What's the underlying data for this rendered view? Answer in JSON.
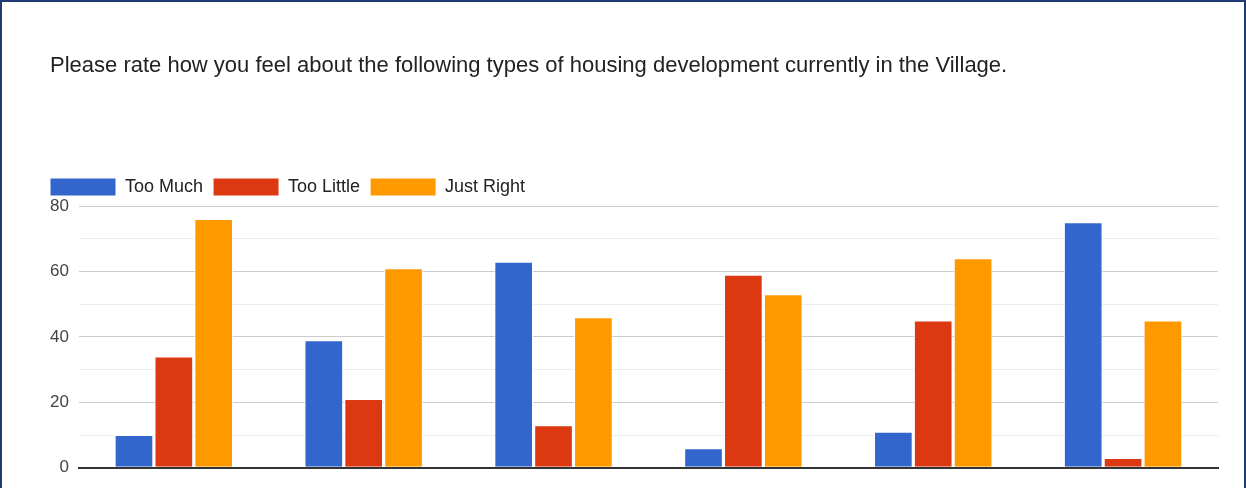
{
  "chart_data": {
    "type": "bar",
    "title": "Please rate how you feel about the following types of housing development currently in the Village.",
    "categories": [
      null,
      null,
      null,
      null,
      null,
      null
    ],
    "series": [
      {
        "name": "Too Much",
        "color": "#3366cc",
        "values": [
          10,
          39,
          63,
          6,
          11,
          75
        ]
      },
      {
        "name": "Too Little",
        "color": "#dc3912",
        "values": [
          34,
          21,
          13,
          59,
          45,
          3
        ]
      },
      {
        "name": "Just Right",
        "color": "#ff9900",
        "values": [
          76,
          61,
          46,
          53,
          64,
          45
        ]
      }
    ],
    "ylim": [
      0,
      80
    ],
    "yticks": [
      0,
      {
        "value": 10,
        "label": null
      },
      20,
      {
        "value": 30,
        "label": null
      },
      40,
      {
        "value": 50,
        "label": null
      },
      60,
      {
        "value": 70,
        "label": null
      },
      80
    ],
    "grid": "y",
    "legend": "top left",
    "tick_labels": "y"
  }
}
